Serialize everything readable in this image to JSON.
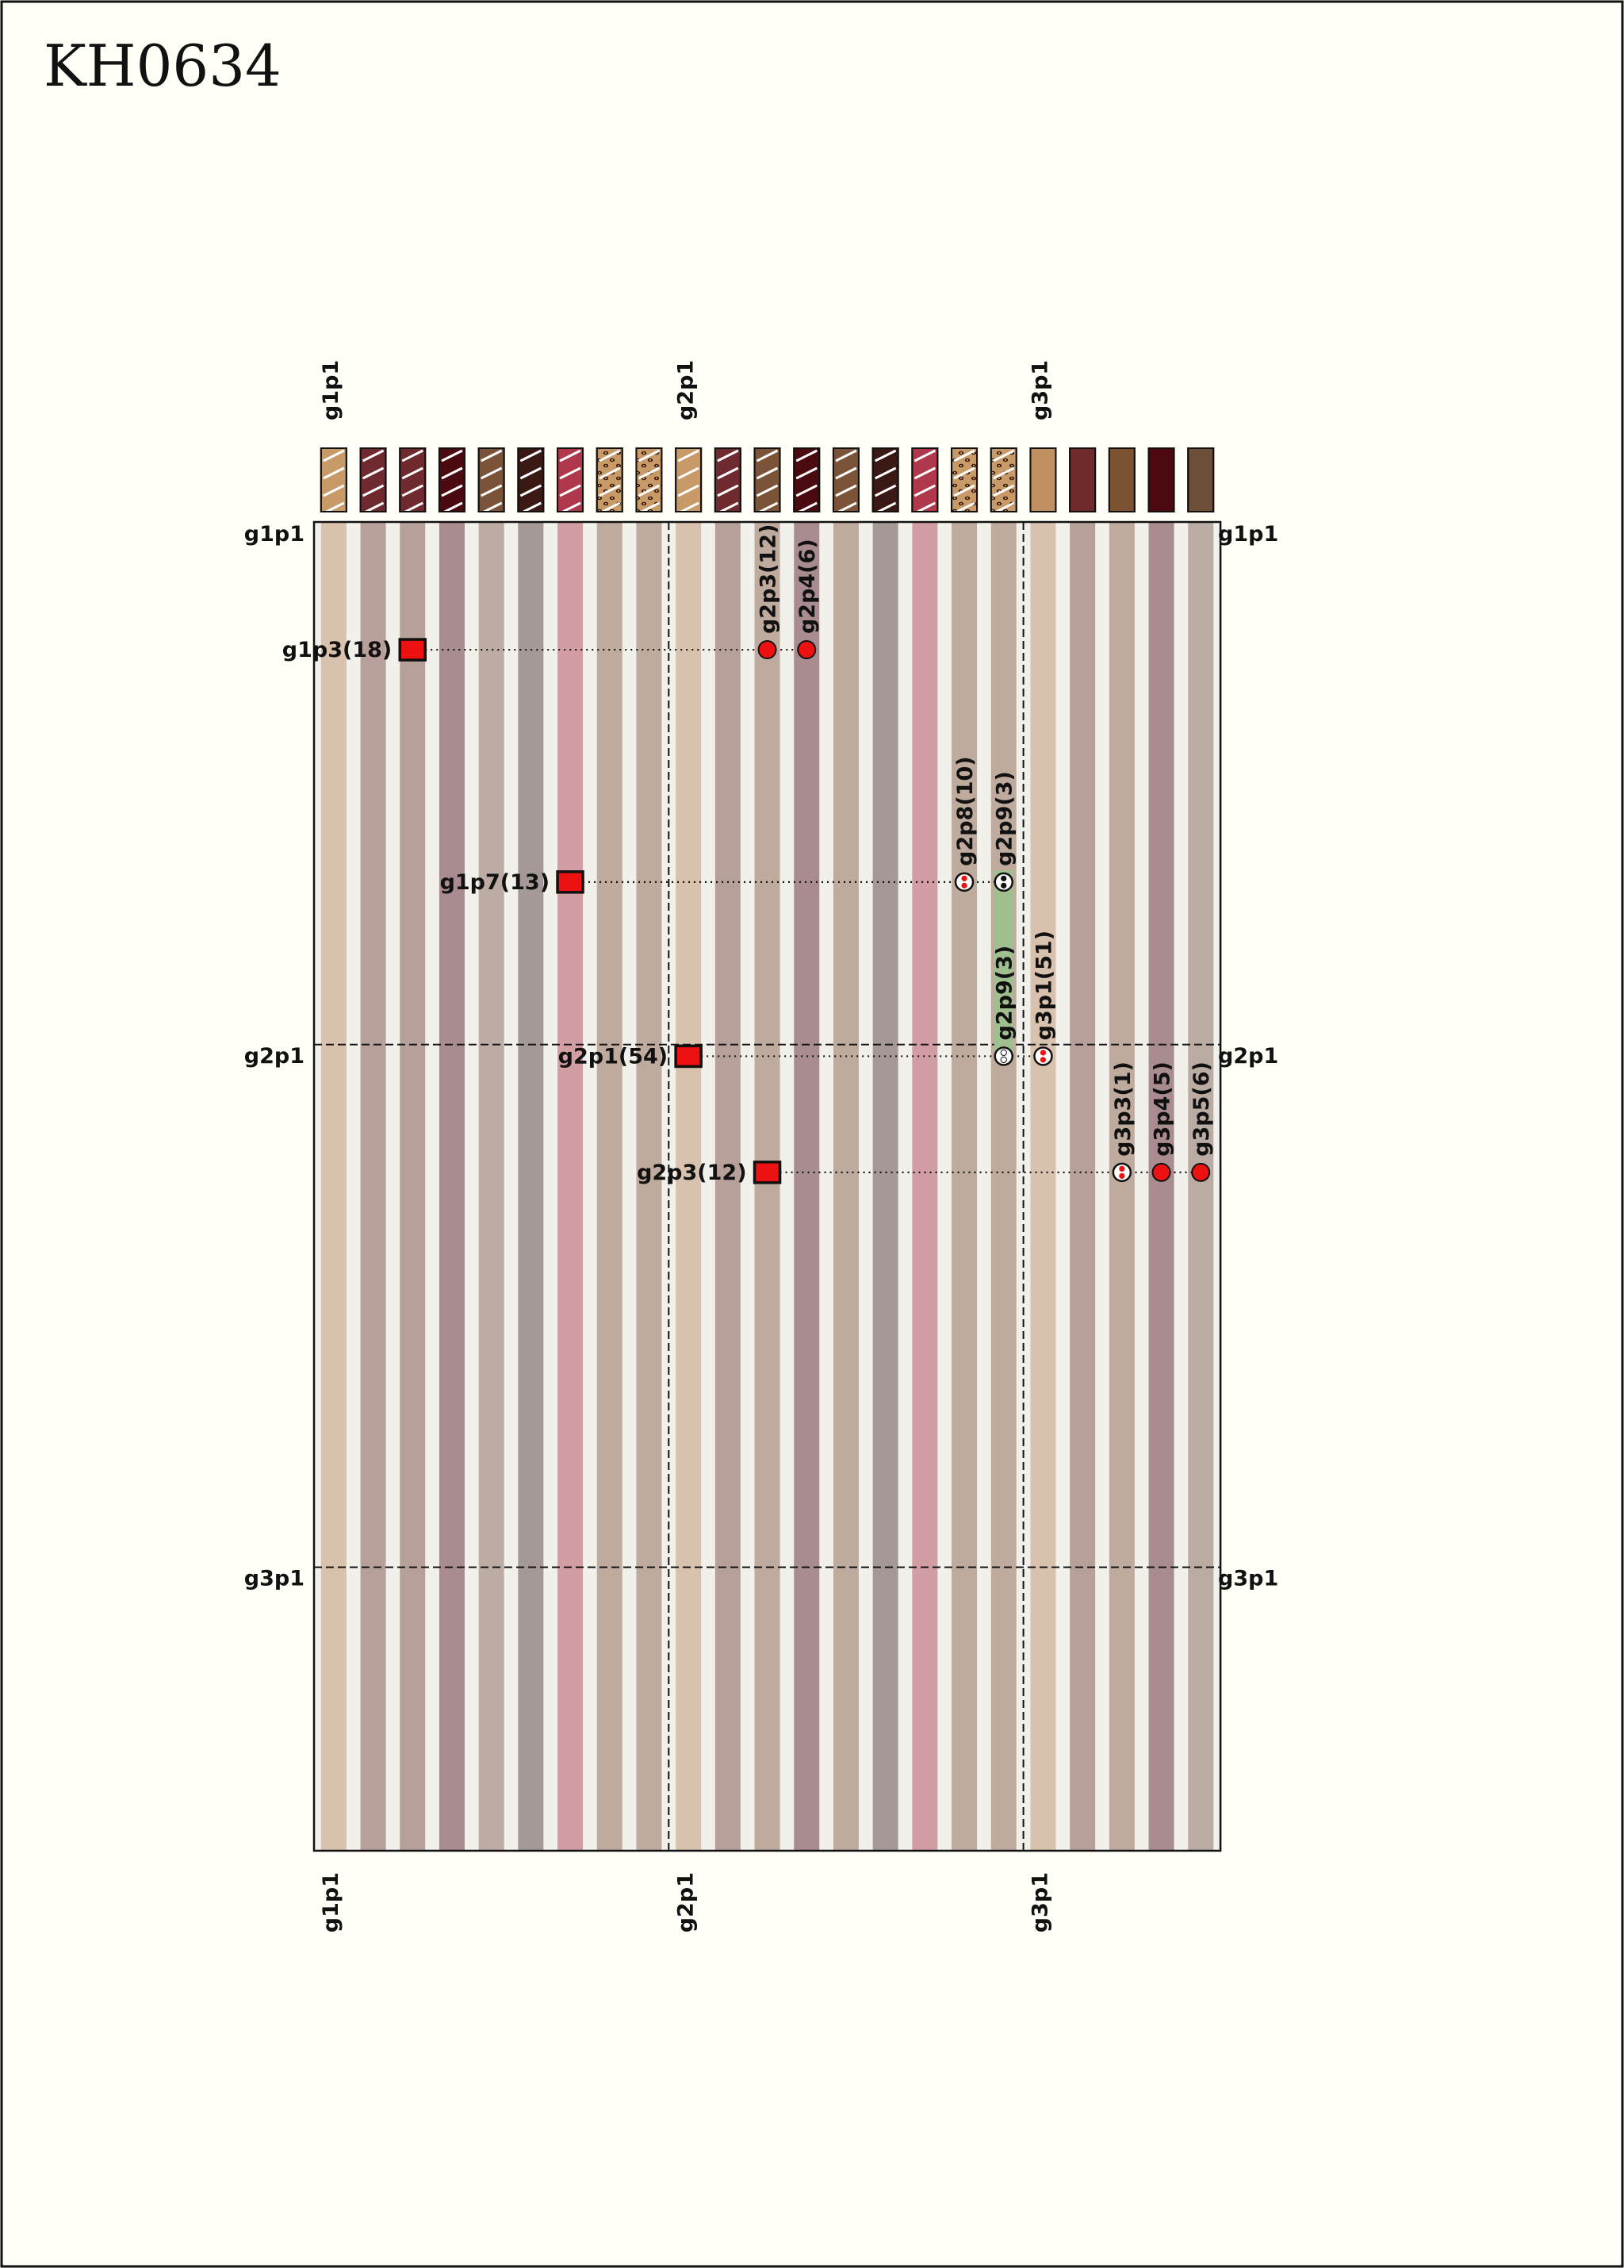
{
  "title": "KH0634",
  "colors": {
    "background": "#fffff8",
    "marker": "#ee1111",
    "highlight": "#9fbf8f"
  },
  "columns": [
    {
      "color": "#c89a68",
      "pattern": "diagonal"
    },
    {
      "color": "#6e2a2e",
      "pattern": "diagonal"
    },
    {
      "color": "#6e2a2e",
      "pattern": "diagonal"
    },
    {
      "color": "#4a0a10",
      "pattern": "diagonal"
    },
    {
      "color": "#7a5338",
      "pattern": "diagonal"
    },
    {
      "color": "#3a1814",
      "pattern": "diagonal"
    },
    {
      "color": "#b0384c",
      "pattern": "diagonal"
    },
    {
      "color": "#c89a68",
      "pattern": "leopard"
    },
    {
      "color": "#c89a68",
      "pattern": "leopard"
    },
    {
      "color": "#c89a68",
      "pattern": "diagonal"
    },
    {
      "color": "#6e2a2e",
      "pattern": "diagonal"
    },
    {
      "color": "#7a5338",
      "pattern": "diagonal"
    },
    {
      "color": "#4a0a10",
      "pattern": "diagonal"
    },
    {
      "color": "#7a5338",
      "pattern": "diagonal"
    },
    {
      "color": "#3a1814",
      "pattern": "diagonal"
    },
    {
      "color": "#b0384c",
      "pattern": "diagonal"
    },
    {
      "color": "#c89a68",
      "pattern": "leopard"
    },
    {
      "color": "#c89a68",
      "pattern": "leopard"
    },
    {
      "color": "#c09060",
      "pattern": "solid"
    },
    {
      "color": "#702c2c",
      "pattern": "solid"
    },
    {
      "color": "#7c5230",
      "pattern": "solid"
    },
    {
      "color": "#4c0a10",
      "pattern": "solid"
    },
    {
      "color": "#6e5038",
      "pattern": "solid"
    }
  ],
  "stripe_colors": [
    "#d8c2ad",
    "#b8a09a",
    "#b8a09a",
    "#a88c90",
    "#bdaca3",
    "#a59998",
    "#d29ea4",
    "#bfaa9e",
    "#bfaa9e",
    "#d8c2ad",
    "#b8a09a",
    "#bfaa9e",
    "#a88c90",
    "#bfaa9e",
    "#a59998",
    "#d29ea4",
    "#bfaa9e",
    "#bfaa9e",
    "#d8c2ad",
    "#b8a09a",
    "#bfaa9e",
    "#a88c90",
    "#bbaca3"
  ],
  "groups": [
    {
      "label": "g1p1",
      "col": 0,
      "row": 0
    },
    {
      "label": "g2p1",
      "col": 9,
      "row": 13.5
    },
    {
      "label": "g3p1",
      "col": 18,
      "row": 27
    }
  ],
  "highlights": [
    {
      "col": 17,
      "row_start": 9,
      "row_end": 13.7
    }
  ],
  "links": [
    {
      "from_label": "g1p3(18)",
      "from_col": 2,
      "row": 3.3,
      "targets": [
        {
          "label": "g2p3(12)",
          "col": 11,
          "marker": "dot"
        },
        {
          "label": "g2p4(6)",
          "col": 12,
          "marker": "dot"
        }
      ]
    },
    {
      "from_label": "g1p7(13)",
      "from_col": 6,
      "row": 9.3,
      "targets": [
        {
          "label": "g2p8(10)",
          "col": 16,
          "marker": "split-red"
        },
        {
          "label": "g2p9(3)",
          "col": 17,
          "marker": "split-black"
        }
      ]
    },
    {
      "from_label": "g2p1(54)",
      "from_col": 9,
      "row": 13.8,
      "targets": [
        {
          "label": "g2p9(3)",
          "col": 17,
          "marker": "split-white"
        },
        {
          "label": "g3p1(51)",
          "col": 18,
          "marker": "split-red"
        }
      ]
    },
    {
      "from_label": "g2p3(12)",
      "from_col": 11,
      "row": 16.8,
      "targets": [
        {
          "label": "g3p3(1)",
          "col": 20,
          "marker": "split-red"
        },
        {
          "label": "g3p4(5)",
          "col": 21,
          "marker": "dot"
        },
        {
          "label": "g3p5(6)",
          "col": 22,
          "marker": "dot"
        }
      ]
    }
  ]
}
